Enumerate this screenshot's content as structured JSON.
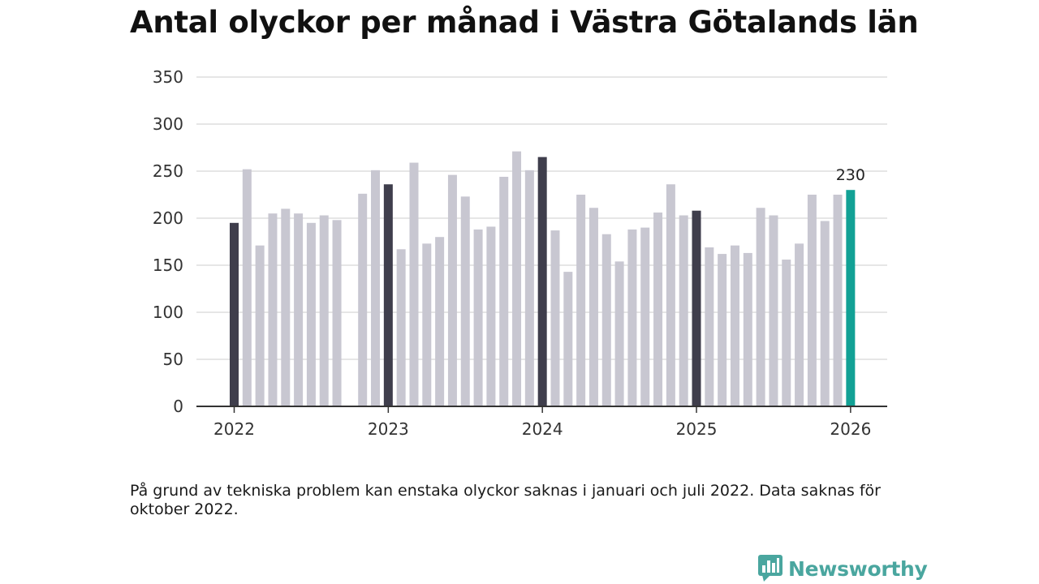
{
  "title": "Antal olyckor per månad i Västra Götalands län",
  "note": "På grund av tekniska problem kan enstaka olyckor saknas i januari och juli 2022. Data saknas för oktober 2022.",
  "brand": {
    "name": "Newsworthy",
    "icon": "newsworthy-logo-icon",
    "color": "#4aa69f"
  },
  "colors": {
    "regular": "#c8c7d1",
    "january": "#3f3e4c",
    "latest": "#12a195",
    "grid": "#dddddd",
    "axis": "#333333"
  },
  "chart_data": {
    "type": "bar",
    "title": "Antal olyckor per månad i Västra Götalands län",
    "xlabel": "",
    "ylabel": "",
    "ylim": [
      0,
      350
    ],
    "yticks": [
      0,
      50,
      100,
      150,
      200,
      250,
      300,
      350
    ],
    "xticks": [
      "2022",
      "2023",
      "2024",
      "2025",
      "2026"
    ],
    "grid": true,
    "categories": [
      "2022-01",
      "2022-02",
      "2022-03",
      "2022-04",
      "2022-05",
      "2022-06",
      "2022-07",
      "2022-08",
      "2022-09",
      "2022-10",
      "2022-11",
      "2022-12",
      "2023-01",
      "2023-02",
      "2023-03",
      "2023-04",
      "2023-05",
      "2023-06",
      "2023-07",
      "2023-08",
      "2023-09",
      "2023-10",
      "2023-11",
      "2023-12",
      "2024-01",
      "2024-02",
      "2024-03",
      "2024-04",
      "2024-05",
      "2024-06",
      "2024-07",
      "2024-08",
      "2024-09",
      "2024-10",
      "2024-11",
      "2024-12",
      "2025-01",
      "2025-02",
      "2025-03",
      "2025-04",
      "2025-05",
      "2025-06",
      "2025-07",
      "2025-08",
      "2025-09",
      "2025-10",
      "2025-11",
      "2025-12",
      "2026-01"
    ],
    "values": [
      195,
      252,
      171,
      205,
      210,
      205,
      195,
      203,
      198,
      null,
      226,
      251,
      236,
      167,
      259,
      173,
      180,
      246,
      223,
      188,
      191,
      244,
      271,
      251,
      265,
      187,
      143,
      225,
      211,
      183,
      154,
      188,
      190,
      206,
      236,
      203,
      208,
      169,
      162,
      171,
      163,
      211,
      203,
      156,
      173,
      225,
      197,
      225,
      230
    ],
    "annotations": [
      {
        "category": "2026-01",
        "label": "230"
      }
    ]
  }
}
